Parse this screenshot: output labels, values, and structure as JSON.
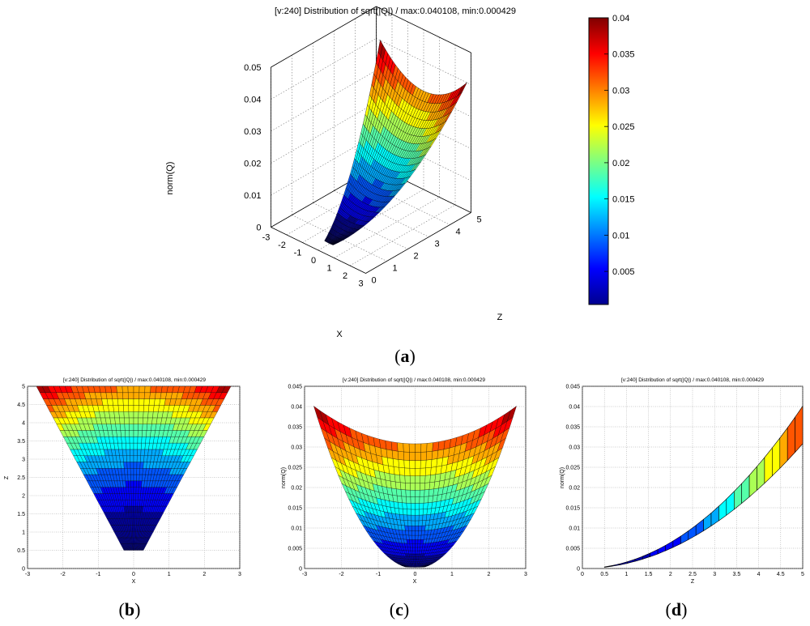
{
  "chart_data": [
    {
      "id": "a",
      "type": "surface3d",
      "title": "[v:240] Distribution of sqrt(|Q|) / max:0.040108, min:0.000429",
      "xlabel": "X",
      "ylabel": "Z",
      "zlabel": "norm(Q)",
      "xlim": [
        -3,
        3
      ],
      "ylim": [
        0,
        5
      ],
      "zlim": [
        0,
        0.05
      ],
      "xticks": [
        "-3",
        "-2",
        "-1",
        "0",
        "1",
        "2",
        "3"
      ],
      "yticks": [
        "0",
        "1",
        "2",
        "3",
        "4",
        "5"
      ],
      "zticks": [
        "0",
        "0.01",
        "0.02",
        "0.03",
        "0.04",
        "0.05"
      ],
      "colorbar": {
        "min": 0.000429,
        "max": 0.04,
        "ticks": [
          "0.005",
          "0.01",
          "0.015",
          "0.02",
          "0.025",
          "0.03",
          "0.035",
          "0.04"
        ]
      },
      "caption_open": "(",
      "caption_letter": "a",
      "caption_close": ")"
    },
    {
      "id": "b",
      "type": "surface_view_xz",
      "title": "[v:240] Distribution of sqrt(|Q|) / max:0.040108, min:0.000429",
      "xlabel": "X",
      "ylabel": "Z",
      "xlim": [
        -3,
        3
      ],
      "ylim": [
        0,
        5
      ],
      "xticks": [
        "-3",
        "-2",
        "-1",
        "0",
        "1",
        "2",
        "3"
      ],
      "yticks": [
        "0",
        "0.5",
        "1",
        "1.5",
        "2",
        "2.5",
        "3",
        "3.5",
        "4",
        "4.5",
        "5"
      ],
      "caption_open": "(",
      "caption_letter": "b",
      "caption_close": ")"
    },
    {
      "id": "c",
      "type": "surface_view_xq",
      "title": "[v:240] Distribution of sqrt(|Q|) / max:0.040108, min:0.000429",
      "xlabel": "X",
      "ylabel": "norm(Q)",
      "xlim": [
        -3,
        3
      ],
      "ylim": [
        0,
        0.045
      ],
      "xticks": [
        "-3",
        "-2",
        "-1",
        "0",
        "1",
        "2",
        "3"
      ],
      "yticks": [
        "0",
        "0.005",
        "0.01",
        "0.015",
        "0.02",
        "0.025",
        "0.03",
        "0.035",
        "0.04",
        "0.045"
      ],
      "caption_open": "(",
      "caption_letter": "c",
      "caption_close": ")"
    },
    {
      "id": "d",
      "type": "surface_view_zq",
      "title": "[v:240] Distribution of sqrt(|Q|) / max:0.040108, min:0.000429",
      "xlabel": "Z",
      "ylabel": "norm(Q)",
      "xlim": [
        0,
        5
      ],
      "ylim": [
        0,
        0.045
      ],
      "xticks": [
        "0",
        "0.5",
        "1",
        "1.5",
        "2",
        "2.5",
        "3",
        "3.5",
        "4",
        "4.5",
        "5"
      ],
      "yticks": [
        "0",
        "0.005",
        "0.01",
        "0.015",
        "0.02",
        "0.025",
        "0.03",
        "0.035",
        "0.04",
        "0.045"
      ],
      "caption_open": "(",
      "caption_letter": "d",
      "caption_close": ")"
    }
  ]
}
